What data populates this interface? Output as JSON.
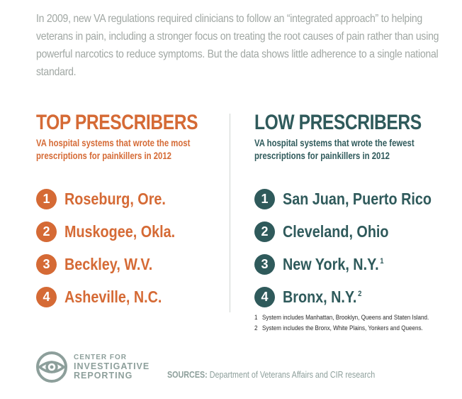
{
  "intro": "In 2009, new VA regulations required clinicians to follow an “integrated approach” to helping veterans in pain, including a stronger focus on treating the root causes of pain rather than using powerful narcotics to reduce symptoms. But the data shows little adherence to a single national standard.",
  "top": {
    "title": "TOP PRESCRIBERS",
    "subtitle": "VA hospital systems that wrote the most prescriptions for painkillers in 2012",
    "items": [
      {
        "rank": "1",
        "name": "Roseburg, Ore.",
        "note": ""
      },
      {
        "rank": "2",
        "name": "Muskogee, Okla.",
        "note": ""
      },
      {
        "rank": "3",
        "name": "Beckley, W.V.",
        "note": ""
      },
      {
        "rank": "4",
        "name": "Asheville, N.C.",
        "note": ""
      }
    ]
  },
  "low": {
    "title": "LOW PRESCRIBERS",
    "subtitle": "VA hospital systems that wrote the fewest prescriptions for painkillers in 2012",
    "items": [
      {
        "rank": "1",
        "name": "San Juan, Puerto Rico",
        "note": ""
      },
      {
        "rank": "2",
        "name": "Cleveland, Ohio",
        "note": ""
      },
      {
        "rank": "3",
        "name": "New York, N.Y.",
        "note": "1"
      },
      {
        "rank": "4",
        "name": "Bronx, N.Y.",
        "note": "2"
      }
    ]
  },
  "footnotes": [
    {
      "num": "1",
      "text": "System includes Manhattan, Brooklyn, Queens and Staten Island."
    },
    {
      "num": "2",
      "text": "System includes the Bronx, White Plains, Yonkers and Queens."
    }
  ],
  "logo": {
    "line1": "CENTER FOR",
    "line2": "INVESTIGATIVE",
    "line3": "REPORTING",
    "icon": "eye-icon"
  },
  "sources": {
    "label": "SOURCES:",
    "text": "Department of Veterans Affairs and CIR research"
  },
  "colors": {
    "top_accent": "#d56a35",
    "low_accent": "#2f5a5b",
    "intro_text": "#a0a7a3",
    "logo": "#8d9f9b"
  }
}
